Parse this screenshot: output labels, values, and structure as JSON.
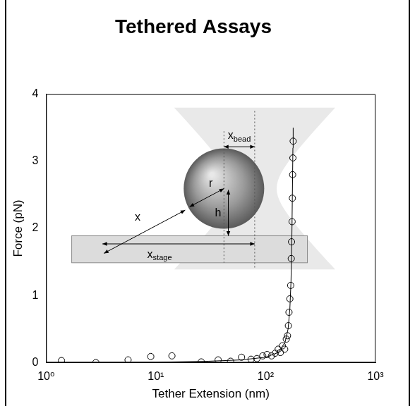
{
  "chart_data": {
    "type": "scatter",
    "title": "Tethered Assays",
    "x_label": "Tether Extension (nm)",
    "y_label": "Force (pN)",
    "log": "x",
    "grid": false,
    "xlim": [
      1,
      1000
    ],
    "xticks": [
      {
        "value": 1,
        "label": "10⁰"
      },
      {
        "value": 10,
        "label": "10¹"
      },
      {
        "value": 100,
        "label": "10²"
      },
      {
        "value": 1000,
        "label": "10³"
      }
    ],
    "ylim": [
      0,
      4
    ],
    "yticks": [
      0,
      1,
      2,
      3,
      4
    ],
    "series": [
      {
        "type": "scatter",
        "marker": "circle",
        "color": "#000000",
        "x": [
          1.38,
          2.84,
          5.58,
          8.98,
          14.0,
          25.9,
          36.9,
          47.9,
          60.3,
          73.6,
          83.2,
          94.0,
          103,
          113,
          122,
          130,
          136,
          142,
          149,
          154,
          158,
          161,
          163,
          166,
          169,
          171,
          172,
          174,
          175,
          176,
          177,
          178
        ],
        "values": [
          0.03,
          0.0,
          0.04,
          0.09,
          0.1,
          0.01,
          0.04,
          0.02,
          0.08,
          0.05,
          0.06,
          0.1,
          0.12,
          0.1,
          0.14,
          0.2,
          0.15,
          0.25,
          0.2,
          0.35,
          0.4,
          0.55,
          0.75,
          0.95,
          1.15,
          1.55,
          1.8,
          2.1,
          2.45,
          2.8,
          3.05,
          3.3
        ]
      },
      {
        "type": "line",
        "line_style": "solid",
        "color": "#000000",
        "x": [
          1,
          10,
          30,
          60,
          100,
          130,
          150,
          160,
          166,
          170,
          173,
          175,
          177,
          178
        ],
        "values": [
          0.0,
          0.005,
          0.02,
          0.04,
          0.08,
          0.15,
          0.3,
          0.5,
          0.8,
          1.2,
          1.8,
          2.5,
          3.2,
          3.5
        ]
      }
    ],
    "annotations": [
      {
        "text": "x",
        "subscript": "bead"
      },
      {
        "text": "r"
      },
      {
        "text": "x"
      },
      {
        "text": "h"
      },
      {
        "text": "x",
        "subscript": "stage"
      }
    ]
  }
}
